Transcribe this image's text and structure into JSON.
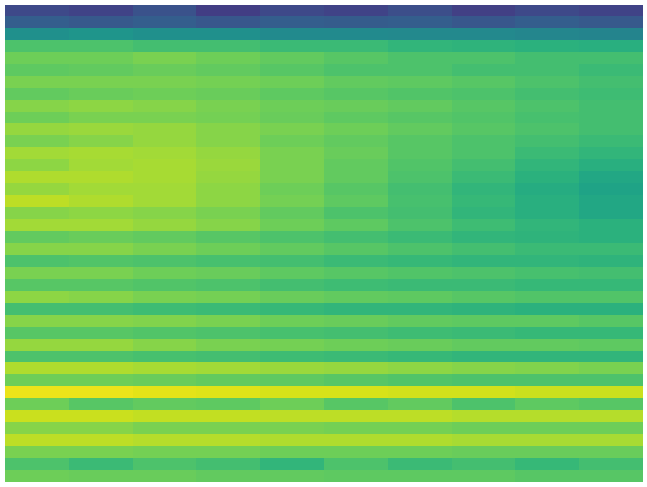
{
  "chart_data": {
    "type": "heatmap",
    "tick_labels": false,
    "color": "viridis",
    "color_range": [
      0,
      1
    ],
    "cells": [
      [
        0.22,
        0.2,
        0.25,
        0.18,
        0.22,
        0.2,
        0.24,
        0.19,
        0.22,
        0.2
      ],
      [
        0.3,
        0.28,
        0.3,
        0.27,
        0.3,
        0.29,
        0.3,
        0.27,
        0.3,
        0.28
      ],
      [
        0.5,
        0.52,
        0.5,
        0.5,
        0.48,
        0.48,
        0.47,
        0.47,
        0.46,
        0.45
      ],
      [
        0.72,
        0.72,
        0.7,
        0.7,
        0.68,
        0.68,
        0.66,
        0.65,
        0.64,
        0.63
      ],
      [
        0.78,
        0.78,
        0.8,
        0.78,
        0.76,
        0.74,
        0.72,
        0.72,
        0.7,
        0.7
      ],
      [
        0.75,
        0.76,
        0.77,
        0.76,
        0.74,
        0.72,
        0.72,
        0.7,
        0.7,
        0.68
      ],
      [
        0.8,
        0.8,
        0.8,
        0.79,
        0.78,
        0.76,
        0.75,
        0.74,
        0.72,
        0.7
      ],
      [
        0.76,
        0.77,
        0.78,
        0.77,
        0.75,
        0.74,
        0.73,
        0.72,
        0.7,
        0.69
      ],
      [
        0.82,
        0.83,
        0.82,
        0.8,
        0.78,
        0.77,
        0.76,
        0.74,
        0.72,
        0.7
      ],
      [
        0.78,
        0.8,
        0.8,
        0.79,
        0.77,
        0.75,
        0.74,
        0.73,
        0.71,
        0.7
      ],
      [
        0.84,
        0.85,
        0.84,
        0.82,
        0.8,
        0.78,
        0.76,
        0.74,
        0.72,
        0.7
      ],
      [
        0.8,
        0.82,
        0.84,
        0.82,
        0.78,
        0.76,
        0.74,
        0.72,
        0.7,
        0.68
      ],
      [
        0.86,
        0.87,
        0.86,
        0.84,
        0.8,
        0.77,
        0.74,
        0.72,
        0.68,
        0.66
      ],
      [
        0.83,
        0.86,
        0.87,
        0.85,
        0.8,
        0.76,
        0.73,
        0.7,
        0.66,
        0.63
      ],
      [
        0.88,
        0.88,
        0.87,
        0.84,
        0.8,
        0.76,
        0.72,
        0.68,
        0.64,
        0.6
      ],
      [
        0.84,
        0.86,
        0.86,
        0.83,
        0.78,
        0.74,
        0.7,
        0.66,
        0.62,
        0.58
      ],
      [
        0.9,
        0.88,
        0.86,
        0.83,
        0.79,
        0.75,
        0.71,
        0.67,
        0.63,
        0.6
      ],
      [
        0.82,
        0.83,
        0.82,
        0.8,
        0.76,
        0.72,
        0.7,
        0.66,
        0.63,
        0.6
      ],
      [
        0.86,
        0.86,
        0.84,
        0.82,
        0.78,
        0.75,
        0.72,
        0.69,
        0.66,
        0.64
      ],
      [
        0.76,
        0.77,
        0.76,
        0.74,
        0.72,
        0.7,
        0.68,
        0.66,
        0.65,
        0.64
      ],
      [
        0.82,
        0.82,
        0.8,
        0.78,
        0.76,
        0.74,
        0.72,
        0.7,
        0.68,
        0.68
      ],
      [
        0.72,
        0.73,
        0.72,
        0.71,
        0.7,
        0.68,
        0.67,
        0.66,
        0.66,
        0.65
      ],
      [
        0.8,
        0.8,
        0.78,
        0.77,
        0.75,
        0.74,
        0.73,
        0.72,
        0.71,
        0.7
      ],
      [
        0.74,
        0.74,
        0.73,
        0.72,
        0.7,
        0.69,
        0.68,
        0.68,
        0.67,
        0.67
      ],
      [
        0.83,
        0.82,
        0.8,
        0.79,
        0.77,
        0.76,
        0.75,
        0.74,
        0.73,
        0.73
      ],
      [
        0.7,
        0.7,
        0.69,
        0.68,
        0.67,
        0.66,
        0.66,
        0.65,
        0.64,
        0.64
      ],
      [
        0.82,
        0.82,
        0.81,
        0.8,
        0.78,
        0.77,
        0.76,
        0.75,
        0.75,
        0.74
      ],
      [
        0.74,
        0.74,
        0.73,
        0.72,
        0.71,
        0.7,
        0.69,
        0.68,
        0.67,
        0.67
      ],
      [
        0.84,
        0.84,
        0.82,
        0.8,
        0.79,
        0.78,
        0.77,
        0.76,
        0.76,
        0.75
      ],
      [
        0.72,
        0.72,
        0.71,
        0.7,
        0.69,
        0.68,
        0.67,
        0.66,
        0.66,
        0.66
      ],
      [
        0.88,
        0.88,
        0.87,
        0.86,
        0.85,
        0.84,
        0.83,
        0.82,
        0.81,
        0.8
      ],
      [
        0.78,
        0.78,
        0.77,
        0.76,
        0.75,
        0.74,
        0.73,
        0.72,
        0.72,
        0.72
      ],
      [
        0.97,
        0.97,
        0.96,
        0.95,
        0.94,
        0.94,
        0.93,
        0.93,
        0.92,
        0.92
      ],
      [
        0.78,
        0.74,
        0.76,
        0.75,
        0.78,
        0.74,
        0.76,
        0.72,
        0.75,
        0.74
      ],
      [
        0.92,
        0.92,
        0.91,
        0.91,
        0.9,
        0.9,
        0.9,
        0.89,
        0.89,
        0.89
      ],
      [
        0.82,
        0.82,
        0.8,
        0.8,
        0.8,
        0.79,
        0.79,
        0.78,
        0.78,
        0.78
      ],
      [
        0.9,
        0.9,
        0.89,
        0.89,
        0.88,
        0.88,
        0.88,
        0.87,
        0.87,
        0.87
      ],
      [
        0.8,
        0.8,
        0.79,
        0.79,
        0.78,
        0.78,
        0.78,
        0.77,
        0.77,
        0.77
      ],
      [
        0.72,
        0.68,
        0.72,
        0.7,
        0.66,
        0.72,
        0.68,
        0.7,
        0.67,
        0.7
      ],
      [
        0.78,
        0.77,
        0.77,
        0.76,
        0.76,
        0.75,
        0.75,
        0.75,
        0.74,
        0.74
      ]
    ]
  }
}
